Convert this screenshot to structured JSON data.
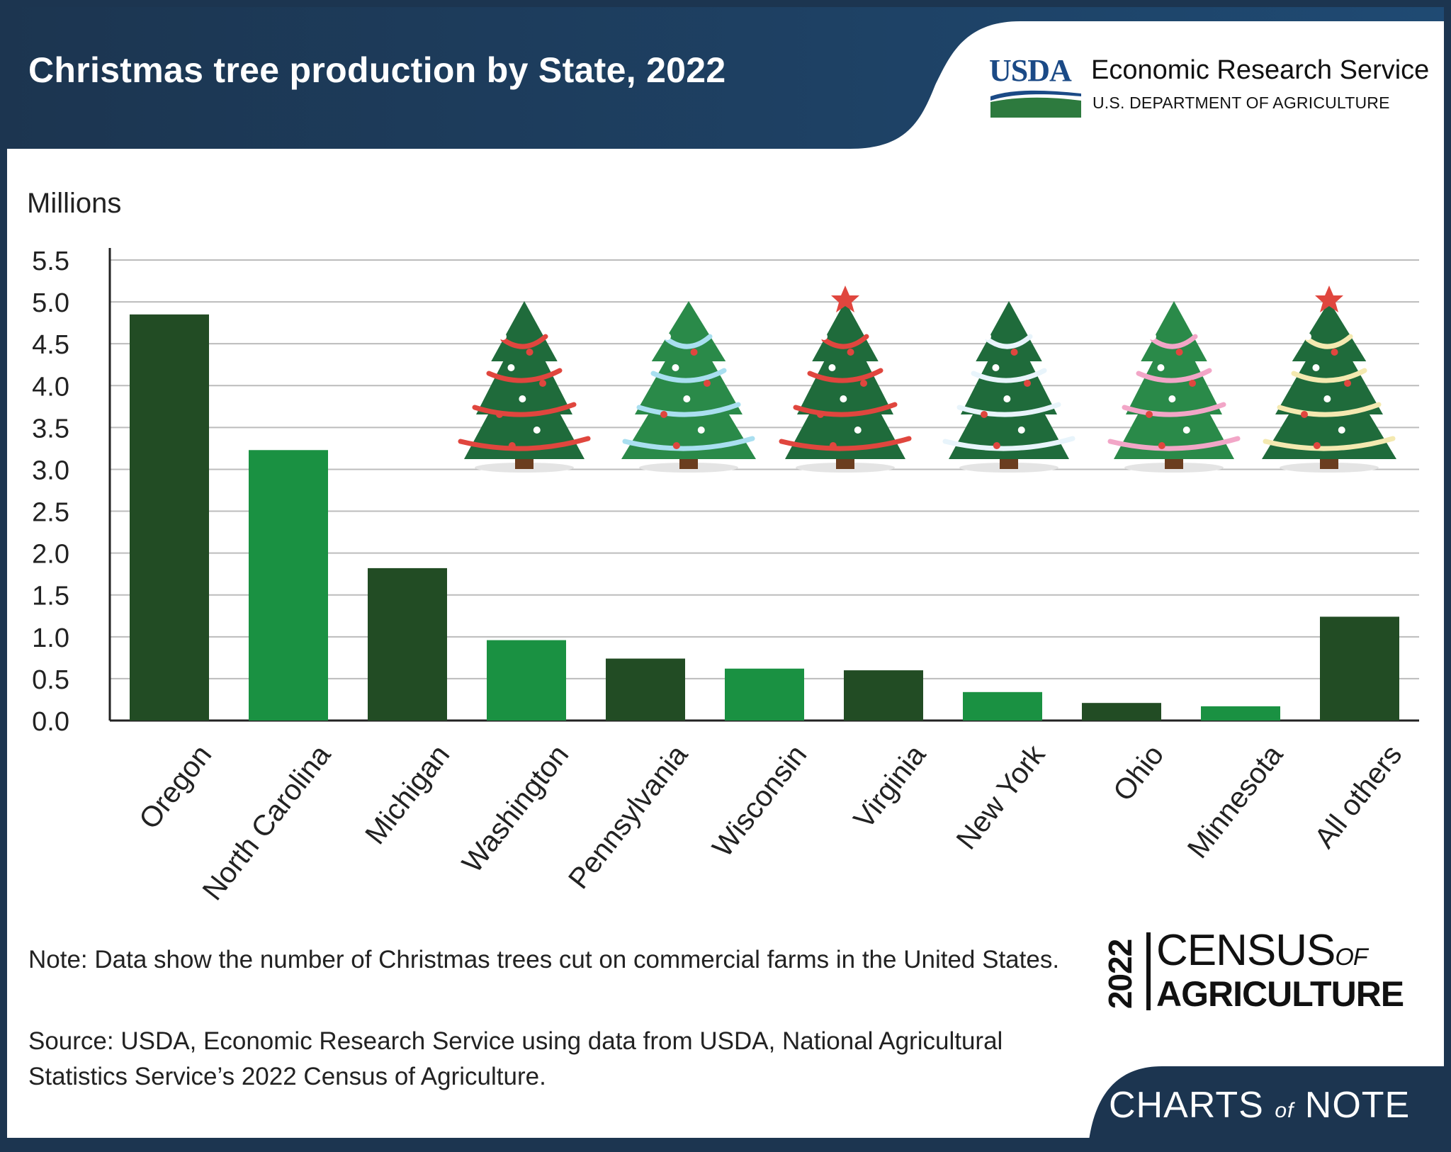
{
  "header": {
    "title": "Christmas tree production by State, 2022",
    "logo_text": "USDA",
    "agency_name": "Economic Research Service",
    "department": "U.S. DEPARTMENT OF AGRICULTURE"
  },
  "footer": {
    "note": "Note: Data show the number of Christmas trees cut on commercial farms in the United States.",
    "source": "Source: USDA, Economic Research Service using data from USDA, National Agricultural Statistics Service’s 2022 Census of Agriculture.",
    "census_logo_year": "2022",
    "census_logo_top": "CENSUS",
    "census_logo_of": "OF",
    "census_logo_bottom": "AGRICULTURE",
    "brand_charts": "CHARTS",
    "brand_of": "of",
    "brand_note": "NOTE"
  },
  "chart_data": {
    "type": "bar",
    "title": "Christmas tree production by State, 2022",
    "ylabel": "Millions",
    "xlabel": "",
    "categories": [
      "Oregon",
      "North Carolina",
      "Michigan",
      "Washington",
      "Pennsylvania",
      "Wisconsin",
      "Virginia",
      "New York",
      "Ohio",
      "Minnesota",
      "All others"
    ],
    "values": [
      4.85,
      3.23,
      1.82,
      0.96,
      0.74,
      0.62,
      0.6,
      0.34,
      0.21,
      0.17,
      1.24
    ],
    "ylim": [
      0,
      5.5
    ],
    "yticks": [
      "0.0",
      "0.5",
      "1.0",
      "1.5",
      "2.0",
      "2.5",
      "3.0",
      "3.5",
      "4.0",
      "4.5",
      "5.0",
      "5.5"
    ],
    "grid": true,
    "colors": {
      "dark": "#224c24",
      "light": "#1a9142",
      "grid": "#bcbcbc"
    }
  },
  "decorations": [
    "tree-gingerbread",
    "tree-snowflake",
    "tree-star",
    "tree-snow",
    "tree-pink-ribbon",
    "tree-lights"
  ],
  "colors": {
    "navy": "#1c3550",
    "usda_blue": "#1b4a86",
    "usda_green": "#2d7a3e"
  }
}
